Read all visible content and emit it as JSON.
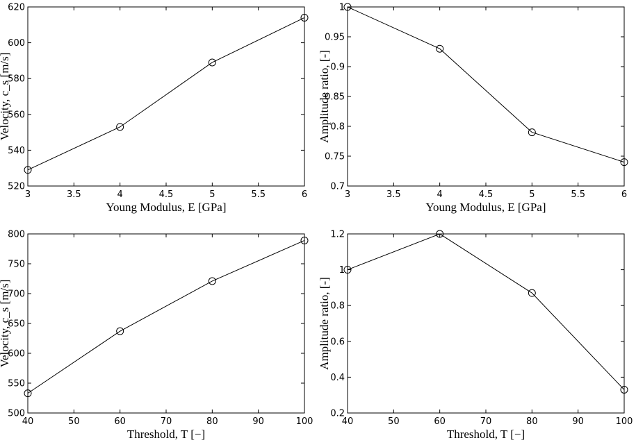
{
  "chart_data": [
    {
      "type": "line",
      "title": "",
      "xlabel": "Young Modulus, E [GPa]",
      "ylabel": "Velocity, c_s [m/s]",
      "x": [
        3,
        4,
        5,
        6
      ],
      "series": [
        {
          "values": [
            529,
            553,
            589,
            614
          ]
        }
      ],
      "xlim": [
        3,
        6
      ],
      "ylim": [
        520,
        620
      ],
      "xticks": [
        "3",
        "3.5",
        "4",
        "4.5",
        "5",
        "5.5",
        "6"
      ],
      "yticks": [
        "520",
        "540",
        "560",
        "580",
        "600",
        "620"
      ],
      "marker": "circle",
      "grid": false
    },
    {
      "type": "line",
      "title": "",
      "xlabel": "Young Modulus, E [GPa]",
      "ylabel": "Amplitude ratio, [-]",
      "x": [
        3,
        4,
        5,
        6
      ],
      "series": [
        {
          "values": [
            1.0,
            0.93,
            0.79,
            0.74
          ]
        }
      ],
      "xlim": [
        3,
        6
      ],
      "ylim": [
        0.7,
        1.0
      ],
      "xticks": [
        "3",
        "3.5",
        "4",
        "4.5",
        "5",
        "5.5",
        "6"
      ],
      "yticks": [
        "0.7",
        "0.75",
        "0.8",
        "0.85",
        "0.9",
        "0.95",
        "1"
      ],
      "marker": "circle",
      "grid": false
    },
    {
      "type": "line",
      "title": "",
      "xlabel": "Threshold, T [−]",
      "ylabel": "Velocity, c_s [m/s]",
      "x": [
        40,
        60,
        80,
        100
      ],
      "series": [
        {
          "values": [
            533,
            637,
            721,
            789
          ]
        }
      ],
      "xlim": [
        40,
        100
      ],
      "ylim": [
        500,
        800
      ],
      "xticks": [
        "40",
        "50",
        "60",
        "70",
        "80",
        "90",
        "100"
      ],
      "yticks": [
        "500",
        "550",
        "600",
        "650",
        "700",
        "750",
        "800"
      ],
      "marker": "circle",
      "grid": false
    },
    {
      "type": "line",
      "title": "",
      "xlabel": "Threshold, T [−]",
      "ylabel": "Amplitude ratio, [-]",
      "x": [
        40,
        60,
        80,
        100
      ],
      "series": [
        {
          "values": [
            1.0,
            1.2,
            0.87,
            0.33
          ]
        }
      ],
      "xlim": [
        40,
        100
      ],
      "ylim": [
        0.2,
        1.2
      ],
      "xticks": [
        "40",
        "50",
        "60",
        "70",
        "80",
        "90",
        "100"
      ],
      "yticks": [
        "0.2",
        "0.4",
        "0.6",
        "0.8",
        "1",
        "1.2"
      ],
      "marker": "circle",
      "grid": false
    }
  ]
}
